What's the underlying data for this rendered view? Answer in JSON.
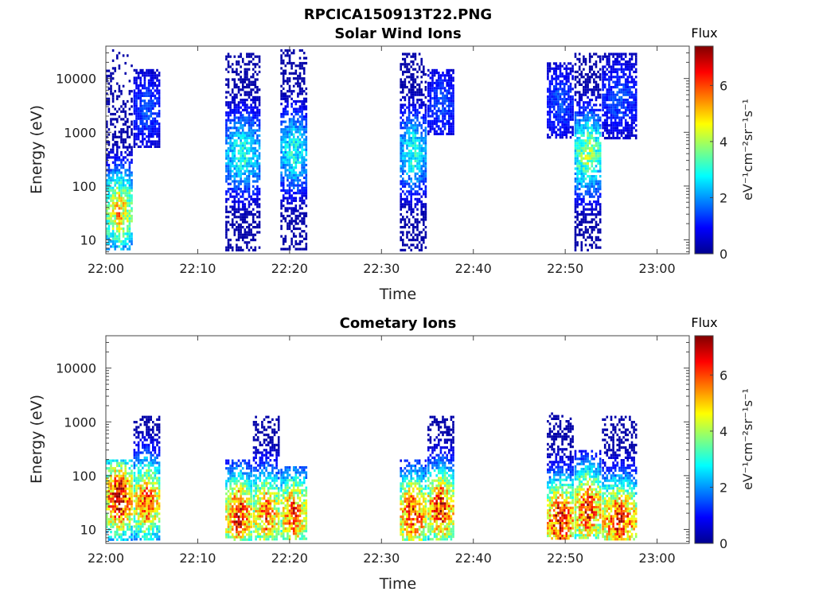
{
  "figure": {
    "title": "RPCICA150913T22.PNG"
  },
  "chart_data": [
    {
      "type": "heatmap",
      "title": "Solar Wind Ions",
      "xlabel": "Time",
      "ylabel": "Energy (eV)",
      "x_ticks": [
        "22:00",
        "22:10",
        "22:20",
        "22:30",
        "22:40",
        "22:50",
        "23:00"
      ],
      "x_range_minutes": [
        0,
        63.5
      ],
      "y_scale": "log",
      "y_ticks": [
        10,
        100,
        1000,
        10000
      ],
      "y_range": [
        5.5,
        40000
      ],
      "colorbar": {
        "label": "Flux",
        "unit": "eV⁻¹cm⁻²sr⁻¹s⁻¹",
        "range": [
          0,
          7.4
        ],
        "ticks": [
          0,
          2,
          4,
          6
        ],
        "colormap": "jet"
      },
      "bursts": [
        {
          "time": "22:00–22:03",
          "energy_range_eV": [
            6,
            35000
          ],
          "peak_flux": 5,
          "peak_energy_eV": 35
        },
        {
          "time": "22:03–22:06",
          "energy_range_eV": [
            500,
            15000
          ],
          "peak_flux": 1.5
        },
        {
          "time": "22:13–22:17",
          "energy_range_eV": [
            6,
            30000
          ],
          "peak_flux": 3
        },
        {
          "time": "22:19–22:22",
          "energy_range_eV": [
            6,
            35000
          ],
          "peak_flux": 3
        },
        {
          "time": "22:32–22:35",
          "energy_range_eV": [
            6,
            30000
          ],
          "peak_flux": 3
        },
        {
          "time": "22:35–22:38",
          "energy_range_eV": [
            800,
            15000
          ],
          "peak_flux": 1.5
        },
        {
          "time": "22:48–22:51",
          "energy_range_eV": [
            700,
            20000
          ],
          "peak_flux": 1.5
        },
        {
          "time": "22:51–22:54",
          "energy_range_eV": [
            6,
            30000
          ],
          "peak_flux": 4
        },
        {
          "time": "22:54–22:58",
          "energy_range_eV": [
            700,
            30000
          ],
          "peak_flux": 1.5
        }
      ],
      "grid": false
    },
    {
      "type": "heatmap",
      "title": "Cometary Ions",
      "xlabel": "Time",
      "ylabel": "Energy (eV)",
      "x_ticks": [
        "22:00",
        "22:10",
        "22:20",
        "22:30",
        "22:40",
        "22:50",
        "23:00"
      ],
      "x_range_minutes": [
        0,
        63.5
      ],
      "y_scale": "log",
      "y_ticks": [
        10,
        100,
        1000,
        10000
      ],
      "y_range": [
        5.5,
        40000
      ],
      "colorbar": {
        "label": "Flux",
        "unit": "eV⁻¹cm⁻²sr⁻¹s⁻¹",
        "range": [
          0,
          7.4
        ],
        "ticks": [
          0,
          2,
          4,
          6
        ],
        "colormap": "jet"
      },
      "bursts": [
        {
          "time": "22:00–22:03",
          "energy_range_eV": [
            6,
            200
          ],
          "peak_flux": 7,
          "peak_energy_eV": 40
        },
        {
          "time": "22:03–22:06",
          "energy_range_eV": [
            6,
            1300
          ],
          "peak_flux": 6,
          "peak_energy_eV": 35
        },
        {
          "time": "22:13–22:16",
          "energy_range_eV": [
            6,
            200
          ],
          "peak_flux": 6.5,
          "peak_energy_eV": 20
        },
        {
          "time": "22:16–22:19",
          "energy_range_eV": [
            6,
            1300
          ],
          "peak_flux": 6,
          "peak_energy_eV": 20
        },
        {
          "time": "22:19–22:22",
          "energy_range_eV": [
            6,
            150
          ],
          "peak_flux": 6,
          "peak_energy_eV": 20
        },
        {
          "time": "22:32–22:35",
          "energy_range_eV": [
            6,
            200
          ],
          "peak_flux": 6.5,
          "peak_energy_eV": 20
        },
        {
          "time": "22:35–22:38",
          "energy_range_eV": [
            6,
            1300
          ],
          "peak_flux": 6.5,
          "peak_energy_eV": 25
        },
        {
          "time": "22:48–22:51",
          "energy_range_eV": [
            6,
            1500
          ],
          "peak_flux": 7,
          "peak_energy_eV": 15
        },
        {
          "time": "22:51–22:54",
          "energy_range_eV": [
            6,
            300
          ],
          "peak_flux": 6.5,
          "peak_energy_eV": 25
        },
        {
          "time": "22:54–22:58",
          "energy_range_eV": [
            6,
            1300
          ],
          "peak_flux": 6.5,
          "peak_energy_eV": 15
        }
      ],
      "grid": false
    }
  ]
}
